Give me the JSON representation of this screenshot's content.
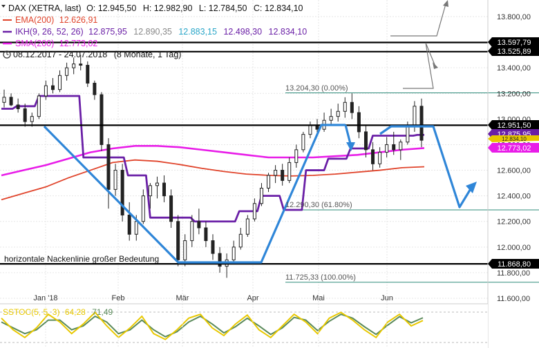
{
  "header": {
    "instrument": "DAX (XETRA, last)",
    "ohlc": {
      "o": "O: 12.945,50",
      "h": "H: 12.982,90",
      "l": "L: 12.784,50",
      "c": "C: 12.834,10"
    },
    "date_range": "08.12.2017 - 24.07.2018",
    "period": "(8 Monate, 1 Tag)"
  },
  "legend": [
    {
      "label": "EMA(200)",
      "values": [
        "12.626,91"
      ],
      "color": "#e0432a"
    },
    {
      "label": "IKH(9, 26, 52, 26)",
      "values": [
        "12.875,95",
        "12.890,35",
        "12.883,15",
        "12.498,30",
        "12.834,10"
      ],
      "value_colors": [
        "#6a1fa6",
        "#888888",
        "#2aa6c8",
        "#6a1fa6",
        "#6a1fa6"
      ],
      "color": "#6a1fa6"
    },
    {
      "label": "SMA(200)",
      "values": [
        "12.773,02"
      ],
      "color": "#e81ce8"
    }
  ],
  "annotations": {
    "neckline_text": "horizontale Nackenlinie großer Bedeutung",
    "fib_0": "13.204,30 (0.00%)",
    "fib_618": "12.290,30 (61.80%)",
    "fib_100": "11.725,33 (100.00%)"
  },
  "oscillator": {
    "label": "SSTOC(5, 5, 3)",
    "values": [
      "64,28",
      "71,49"
    ],
    "colors": [
      "#e8c800",
      "#5a8a5a"
    ]
  },
  "chart_data": {
    "type": "candlestick",
    "title": "DAX (XETRA, last)",
    "x_ticks": [
      "Jan '18",
      "Feb",
      "Mär",
      "Apr",
      "Mai",
      "Jun"
    ],
    "y_ticks": [
      "13.800,00",
      "13.600,00",
      "13.400,00",
      "13.200,00",
      "13.000,00",
      "12.800,00",
      "12.600,00",
      "12.400,00",
      "12.200,00",
      "12.000,00",
      "11.800,00",
      "11.600,00"
    ],
    "ylim": [
      11600,
      13900
    ],
    "price_tags": [
      {
        "value": 13597.79,
        "label": "13.597,79",
        "color": "#000000"
      },
      {
        "value": 13525.89,
        "label": "13.525,89",
        "color": "#000000"
      },
      {
        "value": 12951.5,
        "label": "12.951,50",
        "color": "#000000"
      },
      {
        "value": 12875.95,
        "label": "12.875,95",
        "color": "#6a1fa6"
      },
      {
        "value": 12834.1,
        "label": "12.834,10",
        "color": "#e8c800"
      },
      {
        "value": 12773.02,
        "label": "12.773,02",
        "color": "#e81ce8"
      },
      {
        "value": 11868.8,
        "label": "11.868,80",
        "color": "#000000"
      }
    ],
    "horizontal_lines": [
      {
        "value": 13597.79,
        "color": "#000000"
      },
      {
        "value": 13525.89,
        "color": "#000000"
      },
      {
        "value": 12951.5,
        "color": "#000000"
      },
      {
        "value": 11868.8,
        "color": "#000000"
      }
    ],
    "fib_levels": [
      13204.3,
      12290.3,
      11725.33
    ],
    "series": [
      {
        "name": "EMA(200)",
        "color": "#e0432a",
        "values": [
          12370,
          12420,
          12470,
          12540,
          12600,
          12660,
          12680,
          12670,
          12645,
          12615,
          12590,
          12570,
          12560,
          12555,
          12560,
          12570,
          12585,
          12600,
          12620,
          12627
        ]
      },
      {
        "name": "SMA(200)",
        "color": "#e81ce8",
        "values": [
          12560,
          12600,
          12640,
          12690,
          12740,
          12770,
          12790,
          12790,
          12780,
          12760,
          12740,
          12720,
          12700,
          12700,
          12700,
          12710,
          12720,
          12740,
          12760,
          12773
        ]
      },
      {
        "name": "IKH",
        "color": "#6a1fa6",
        "values": [
          13080,
          13100,
          13180,
          13180,
          12700,
          12700,
          12560,
          12230,
          12230,
          12200,
          12200,
          12280,
          12400,
          12290,
          12600,
          12690,
          12770,
          12870,
          12870,
          12876
        ]
      }
    ],
    "candles": [
      [
        13130,
        13230,
        13090,
        13170
      ],
      [
        13170,
        13200,
        13100,
        13110
      ],
      [
        13110,
        13160,
        13050,
        13080
      ],
      [
        13080,
        13120,
        12940,
        12980
      ],
      [
        12980,
        13050,
        12940,
        13020
      ],
      [
        13020,
        13200,
        13000,
        13180
      ],
      [
        13180,
        13300,
        13150,
        13260
      ],
      [
        13260,
        13320,
        13200,
        13230
      ],
      [
        13230,
        13380,
        13210,
        13340
      ],
      [
        13340,
        13440,
        13300,
        13400
      ],
      [
        13400,
        13480,
        13350,
        13430
      ],
      [
        13430,
        13500,
        13380,
        13420
      ],
      [
        13420,
        13450,
        13250,
        13280
      ],
      [
        13280,
        13300,
        13150,
        13190
      ],
      [
        13190,
        13210,
        12750,
        12800
      ],
      [
        12800,
        12850,
        12300,
        12450
      ],
      [
        12450,
        12650,
        12400,
        12600
      ],
      [
        12600,
        12650,
        12200,
        12250
      ],
      [
        12250,
        12350,
        12050,
        12100
      ],
      [
        12100,
        12250,
        12050,
        12200
      ],
      [
        12200,
        12450,
        12180,
        12400
      ],
      [
        12400,
        12500,
        12300,
        12480
      ],
      [
        12480,
        12550,
        12380,
        12500
      ],
      [
        12500,
        12560,
        12350,
        12400
      ],
      [
        12400,
        12450,
        12150,
        12200
      ],
      [
        12200,
        12250,
        11850,
        11900
      ],
      [
        11900,
        12100,
        11850,
        12050
      ],
      [
        12050,
        12250,
        12000,
        12200
      ],
      [
        12200,
        12300,
        12100,
        12150
      ],
      [
        12150,
        12200,
        12000,
        12050
      ],
      [
        12050,
        12100,
        11900,
        11950
      ],
      [
        11950,
        12000,
        11800,
        11850
      ],
      [
        11850,
        11950,
        11760,
        11900
      ],
      [
        11900,
        12050,
        11880,
        12000
      ],
      [
        12000,
        12150,
        11980,
        12100
      ],
      [
        12100,
        12250,
        12080,
        12220
      ],
      [
        12220,
        12380,
        12200,
        12340
      ],
      [
        12340,
        12500,
        12320,
        12460
      ],
      [
        12460,
        12580,
        12430,
        12560
      ],
      [
        12560,
        12640,
        12500,
        12600
      ],
      [
        12600,
        12650,
        12480,
        12520
      ],
      [
        12520,
        12700,
        12500,
        12660
      ],
      [
        12660,
        12800,
        12620,
        12760
      ],
      [
        12760,
        12900,
        12740,
        12880
      ],
      [
        12880,
        12980,
        12850,
        12950
      ],
      [
        12950,
        13000,
        12880,
        12920
      ],
      [
        12920,
        13050,
        12900,
        12990
      ],
      [
        12990,
        13080,
        12950,
        13020
      ],
      [
        13020,
        13120,
        12980,
        13060
      ],
      [
        13060,
        13170,
        13010,
        13130
      ],
      [
        13130,
        13200,
        13000,
        13050
      ],
      [
        13050,
        13100,
        12850,
        12900
      ],
      [
        12900,
        12950,
        12700,
        12760
      ],
      [
        12760,
        12820,
        12600,
        12650
      ],
      [
        12650,
        12780,
        12620,
        12740
      ],
      [
        12740,
        12860,
        12700,
        12800
      ],
      [
        12800,
        12900,
        12720,
        12760
      ],
      [
        12760,
        12840,
        12680,
        12820
      ],
      [
        12820,
        12980,
        12800,
        12940
      ],
      [
        12940,
        13140,
        12900,
        13100
      ],
      [
        13100,
        13160,
        12780,
        12834
      ]
    ],
    "oscillator_values": {
      "k": [
        70,
        40,
        20,
        45,
        80,
        60,
        30,
        55,
        85,
        50,
        20,
        45,
        75,
        30,
        15,
        40,
        70,
        80,
        45,
        25,
        55,
        78,
        40,
        20,
        50,
        80,
        60,
        30,
        70,
        85,
        65,
        40,
        20,
        60,
        80,
        50,
        64
      ],
      "d": [
        60,
        45,
        30,
        40,
        65,
        65,
        40,
        50,
        75,
        60,
        30,
        40,
        65,
        40,
        22,
        35,
        60,
        75,
        55,
        32,
        48,
        70,
        50,
        28,
        45,
        72,
        65,
        38,
        62,
        80,
        70,
        48,
        28,
        52,
        74,
        58,
        71
      ]
    }
  }
}
